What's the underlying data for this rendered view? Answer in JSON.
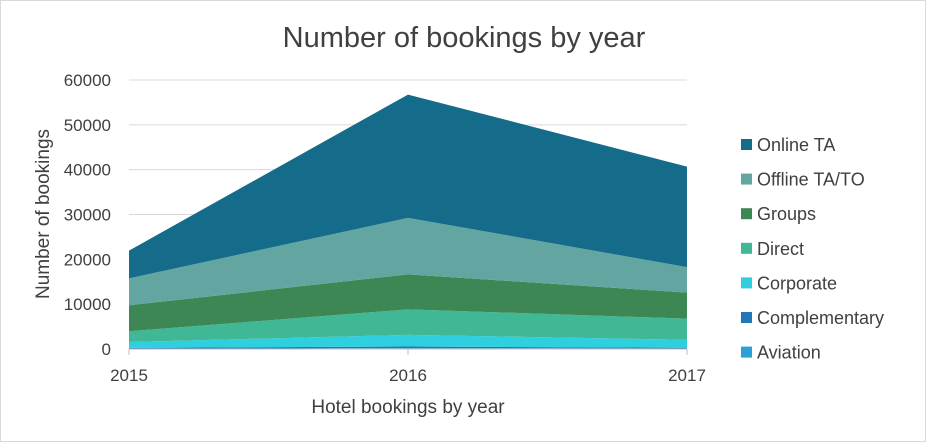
{
  "chart_data": {
    "type": "area",
    "stacked": true,
    "title": "Number of bookings by year",
    "xlabel": "Hotel bookings by year",
    "ylabel": "Number of bookings",
    "categories": [
      "2015",
      "2016",
      "2017"
    ],
    "ylim": [
      0,
      60000
    ],
    "yticks": [
      0,
      10000,
      20000,
      30000,
      40000,
      50000,
      60000
    ],
    "grid": true,
    "legend_position": "right",
    "series": [
      {
        "name": "Aviation",
        "color": "#2a9fd8",
        "values": [
          0,
          200,
          120
        ]
      },
      {
        "name": "Complementary",
        "color": "#1f78b8",
        "values": [
          250,
          350,
          150
        ]
      },
      {
        "name": "Corporate",
        "color": "#2ed0df",
        "values": [
          1300,
          2600,
          1800
        ]
      },
      {
        "name": "Direct",
        "color": "#40b896",
        "values": [
          2400,
          5700,
          4700
        ]
      },
      {
        "name": "Groups",
        "color": "#3d8754",
        "values": [
          5800,
          7800,
          5800
        ]
      },
      {
        "name": "Offline TA/TO",
        "color": "#63a6a1",
        "values": [
          6000,
          12600,
          5700
        ]
      },
      {
        "name": "Online TA",
        "color": "#146b8a",
        "values": [
          6200,
          27500,
          22400
        ]
      }
    ]
  }
}
